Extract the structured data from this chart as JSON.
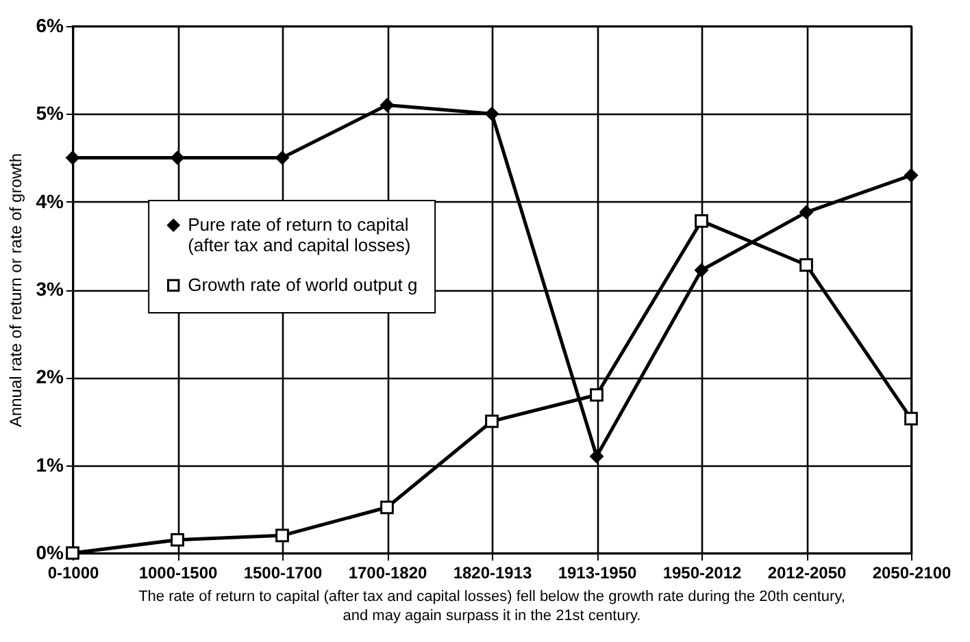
{
  "chart_data": {
    "type": "line",
    "ylabel": "Annual rate of return or rate of growth",
    "categories": [
      "0-1000",
      "1000-1500",
      "1500-1700",
      "1700-1820",
      "1820-1913",
      "1913-1950",
      "1950-2012",
      "2012-2050",
      "2050-2100"
    ],
    "series": [
      {
        "name": "Pure rate of return to capital (after tax and capital losses)",
        "color": "#000000",
        "marker": "diamond",
        "values": [
          4.5,
          4.5,
          4.5,
          5.1,
          5.0,
          1.1,
          3.22,
          3.88,
          4.3
        ]
      },
      {
        "name": "Growth rate of world output g",
        "color": "#000000",
        "marker": "square",
        "values": [
          0,
          0.15,
          0.2,
          0.52,
          1.5,
          1.8,
          3.78,
          3.28,
          1.53
        ]
      }
    ],
    "ylim": [
      0,
      6
    ],
    "yticks": [
      {
        "value": 0,
        "label": "0%"
      },
      {
        "value": 1,
        "label": "1%"
      },
      {
        "value": 2,
        "label": "2%"
      },
      {
        "value": 3,
        "label": "3%"
      },
      {
        "value": 4,
        "label": "4%"
      },
      {
        "value": 5,
        "label": "5%"
      },
      {
        "value": 6,
        "label": "6%"
      }
    ],
    "grid": true,
    "legend": "left",
    "line_style": "solid",
    "annotations": [
      "The rate of return to capital (after tax and capital losses) fell below the growth rate during the 20th century, and may again surpass it in the 21st century."
    ]
  }
}
